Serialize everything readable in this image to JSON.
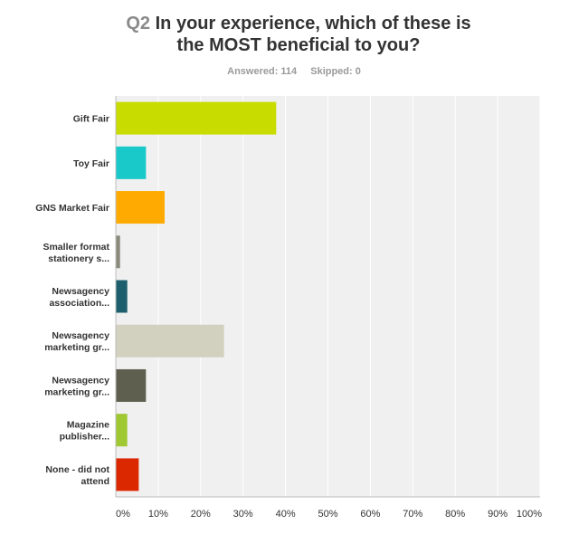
{
  "header": {
    "question_number": "Q2",
    "question_text_line1": "In your experience, which of these is",
    "question_text_line2": "the MOST beneficial to you?",
    "answered": "Answered: 114",
    "skipped": "Skipped: 0"
  },
  "chart_data": {
    "type": "bar",
    "orientation": "horizontal",
    "categories": [
      [
        "Gift Fair"
      ],
      [
        "Toy Fair"
      ],
      [
        "GNS Market Fair"
      ],
      [
        "Smaller format",
        "stationery s..."
      ],
      [
        "Newsagency",
        "association..."
      ],
      [
        "Newsagency",
        "marketing gr..."
      ],
      [
        "Newsagency",
        "marketing gr..."
      ],
      [
        "Magazine",
        "publisher..."
      ],
      [
        "None - did not",
        "attend"
      ]
    ],
    "values": [
      37.7,
      7.0,
      11.4,
      0.9,
      2.6,
      25.4,
      7.0,
      2.6,
      5.3
    ],
    "value_unit": "%",
    "colors": [
      "#c8dc00",
      "#19c8c8",
      "#ffaa00",
      "#8a8a7a",
      "#1e5f6e",
      "#d2d0be",
      "#5f5f50",
      "#a0c832",
      "#dc2800"
    ],
    "xlim": [
      0,
      100
    ],
    "xticks": [
      "0%",
      "10%",
      "20%",
      "30%",
      "40%",
      "50%",
      "60%",
      "70%",
      "80%",
      "90%",
      "100%"
    ],
    "grid": true,
    "background": "#f0f0f0"
  }
}
